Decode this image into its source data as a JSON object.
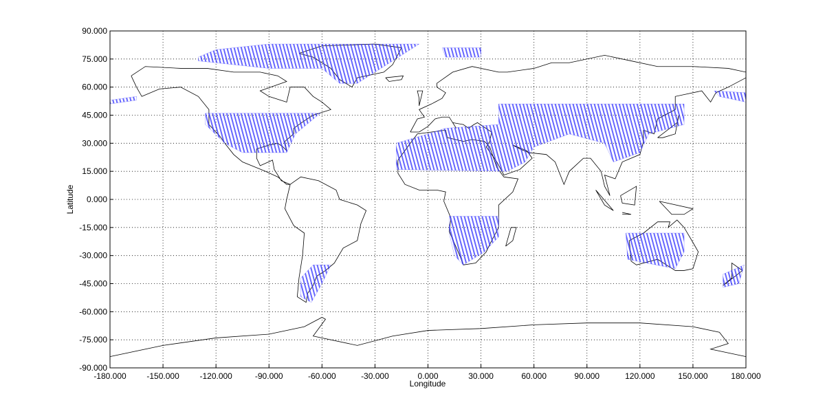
{
  "chart_data": {
    "type": "map",
    "xlabel": "Longitude",
    "ylabel": "Latitude",
    "xlim": [
      -180,
      180
    ],
    "ylim": [
      -90,
      90
    ],
    "xticks": [
      {
        "value": -180,
        "label": "-180.000"
      },
      {
        "value": -150,
        "label": "-150.000"
      },
      {
        "value": -120,
        "label": "-120.000"
      },
      {
        "value": -90,
        "label": "-90.000"
      },
      {
        "value": -60,
        "label": "-60.000"
      },
      {
        "value": -30,
        "label": "-30.000"
      },
      {
        "value": 0,
        "label": "0.000"
      },
      {
        "value": 30,
        "label": "30.000"
      },
      {
        "value": 60,
        "label": "60.000"
      },
      {
        "value": 90,
        "label": "90.000"
      },
      {
        "value": 120,
        "label": "120.000"
      },
      {
        "value": 150,
        "label": "150.000"
      },
      {
        "value": 180,
        "label": "180.000"
      }
    ],
    "yticks": [
      {
        "value": -90,
        "label": "-90.000"
      },
      {
        "value": -75,
        "label": "-75.000"
      },
      {
        "value": -60,
        "label": "-60.000"
      },
      {
        "value": -45,
        "label": "-45.000"
      },
      {
        "value": -30,
        "label": "-30.000"
      },
      {
        "value": -15,
        "label": "-15.000"
      },
      {
        "value": 0,
        "label": "0.000"
      },
      {
        "value": 15,
        "label": "15.000"
      },
      {
        "value": 30,
        "label": "30.000"
      },
      {
        "value": 45,
        "label": "45.000"
      },
      {
        "value": 60,
        "label": "60.000"
      },
      {
        "value": 75,
        "label": "75.000"
      },
      {
        "value": 90,
        "label": "90.000"
      }
    ],
    "grid": true,
    "color": "#3333ff",
    "regions": [
      {
        "lon": [
          -130,
          -120,
          -90,
          -5,
          -10,
          -40,
          -50,
          -60,
          -90,
          -130
        ],
        "lat": [
          76,
          80,
          83,
          83,
          80,
          62,
          62,
          70,
          70,
          74
        ]
      },
      {
        "lon": [
          8,
          30,
          30,
          10
        ],
        "lat": [
          81,
          81,
          76,
          76
        ]
      },
      {
        "lon": [
          -126,
          -61,
          -75,
          -80,
          -105,
          -115,
          -126
        ],
        "lat": [
          46,
          46,
          35,
          25,
          25,
          30,
          40
        ]
      },
      {
        "lon": [
          -18,
          0,
          10,
          40,
          40,
          145,
          145,
          125,
          120,
          105,
          100,
          80,
          60,
          55,
          45,
          -18
        ],
        "lat": [
          30,
          35,
          38,
          40,
          51,
          51,
          40,
          35,
          25,
          20,
          30,
          35,
          28,
          20,
          15,
          16
        ]
      },
      {
        "lon": [
          12,
          40,
          40,
          32,
          20,
          15,
          12
        ],
        "lat": [
          -9,
          -9,
          -20,
          -28,
          -35,
          -30,
          -18
        ]
      },
      {
        "lon": [
          112,
          145,
          145,
          140,
          113
        ],
        "lat": [
          -18,
          -18,
          -28,
          -37,
          -32
        ]
      },
      {
        "lon": [
          -65,
          -55,
          -60,
          -66,
          -72,
          -72
        ],
        "lat": [
          -35,
          -35,
          -45,
          -55,
          -52,
          -42
        ]
      },
      {
        "lon": [
          162,
          180,
          180,
          165
        ],
        "lat": [
          58,
          57,
          52,
          55
        ]
      },
      {
        "lon": [
          -180,
          -165,
          -165,
          -180
        ],
        "lat": [
          53,
          55,
          53,
          51
        ]
      },
      {
        "lon": [
          167,
          179,
          176,
          167
        ],
        "lat": [
          -40,
          -35,
          -45,
          -47
        ]
      }
    ]
  }
}
